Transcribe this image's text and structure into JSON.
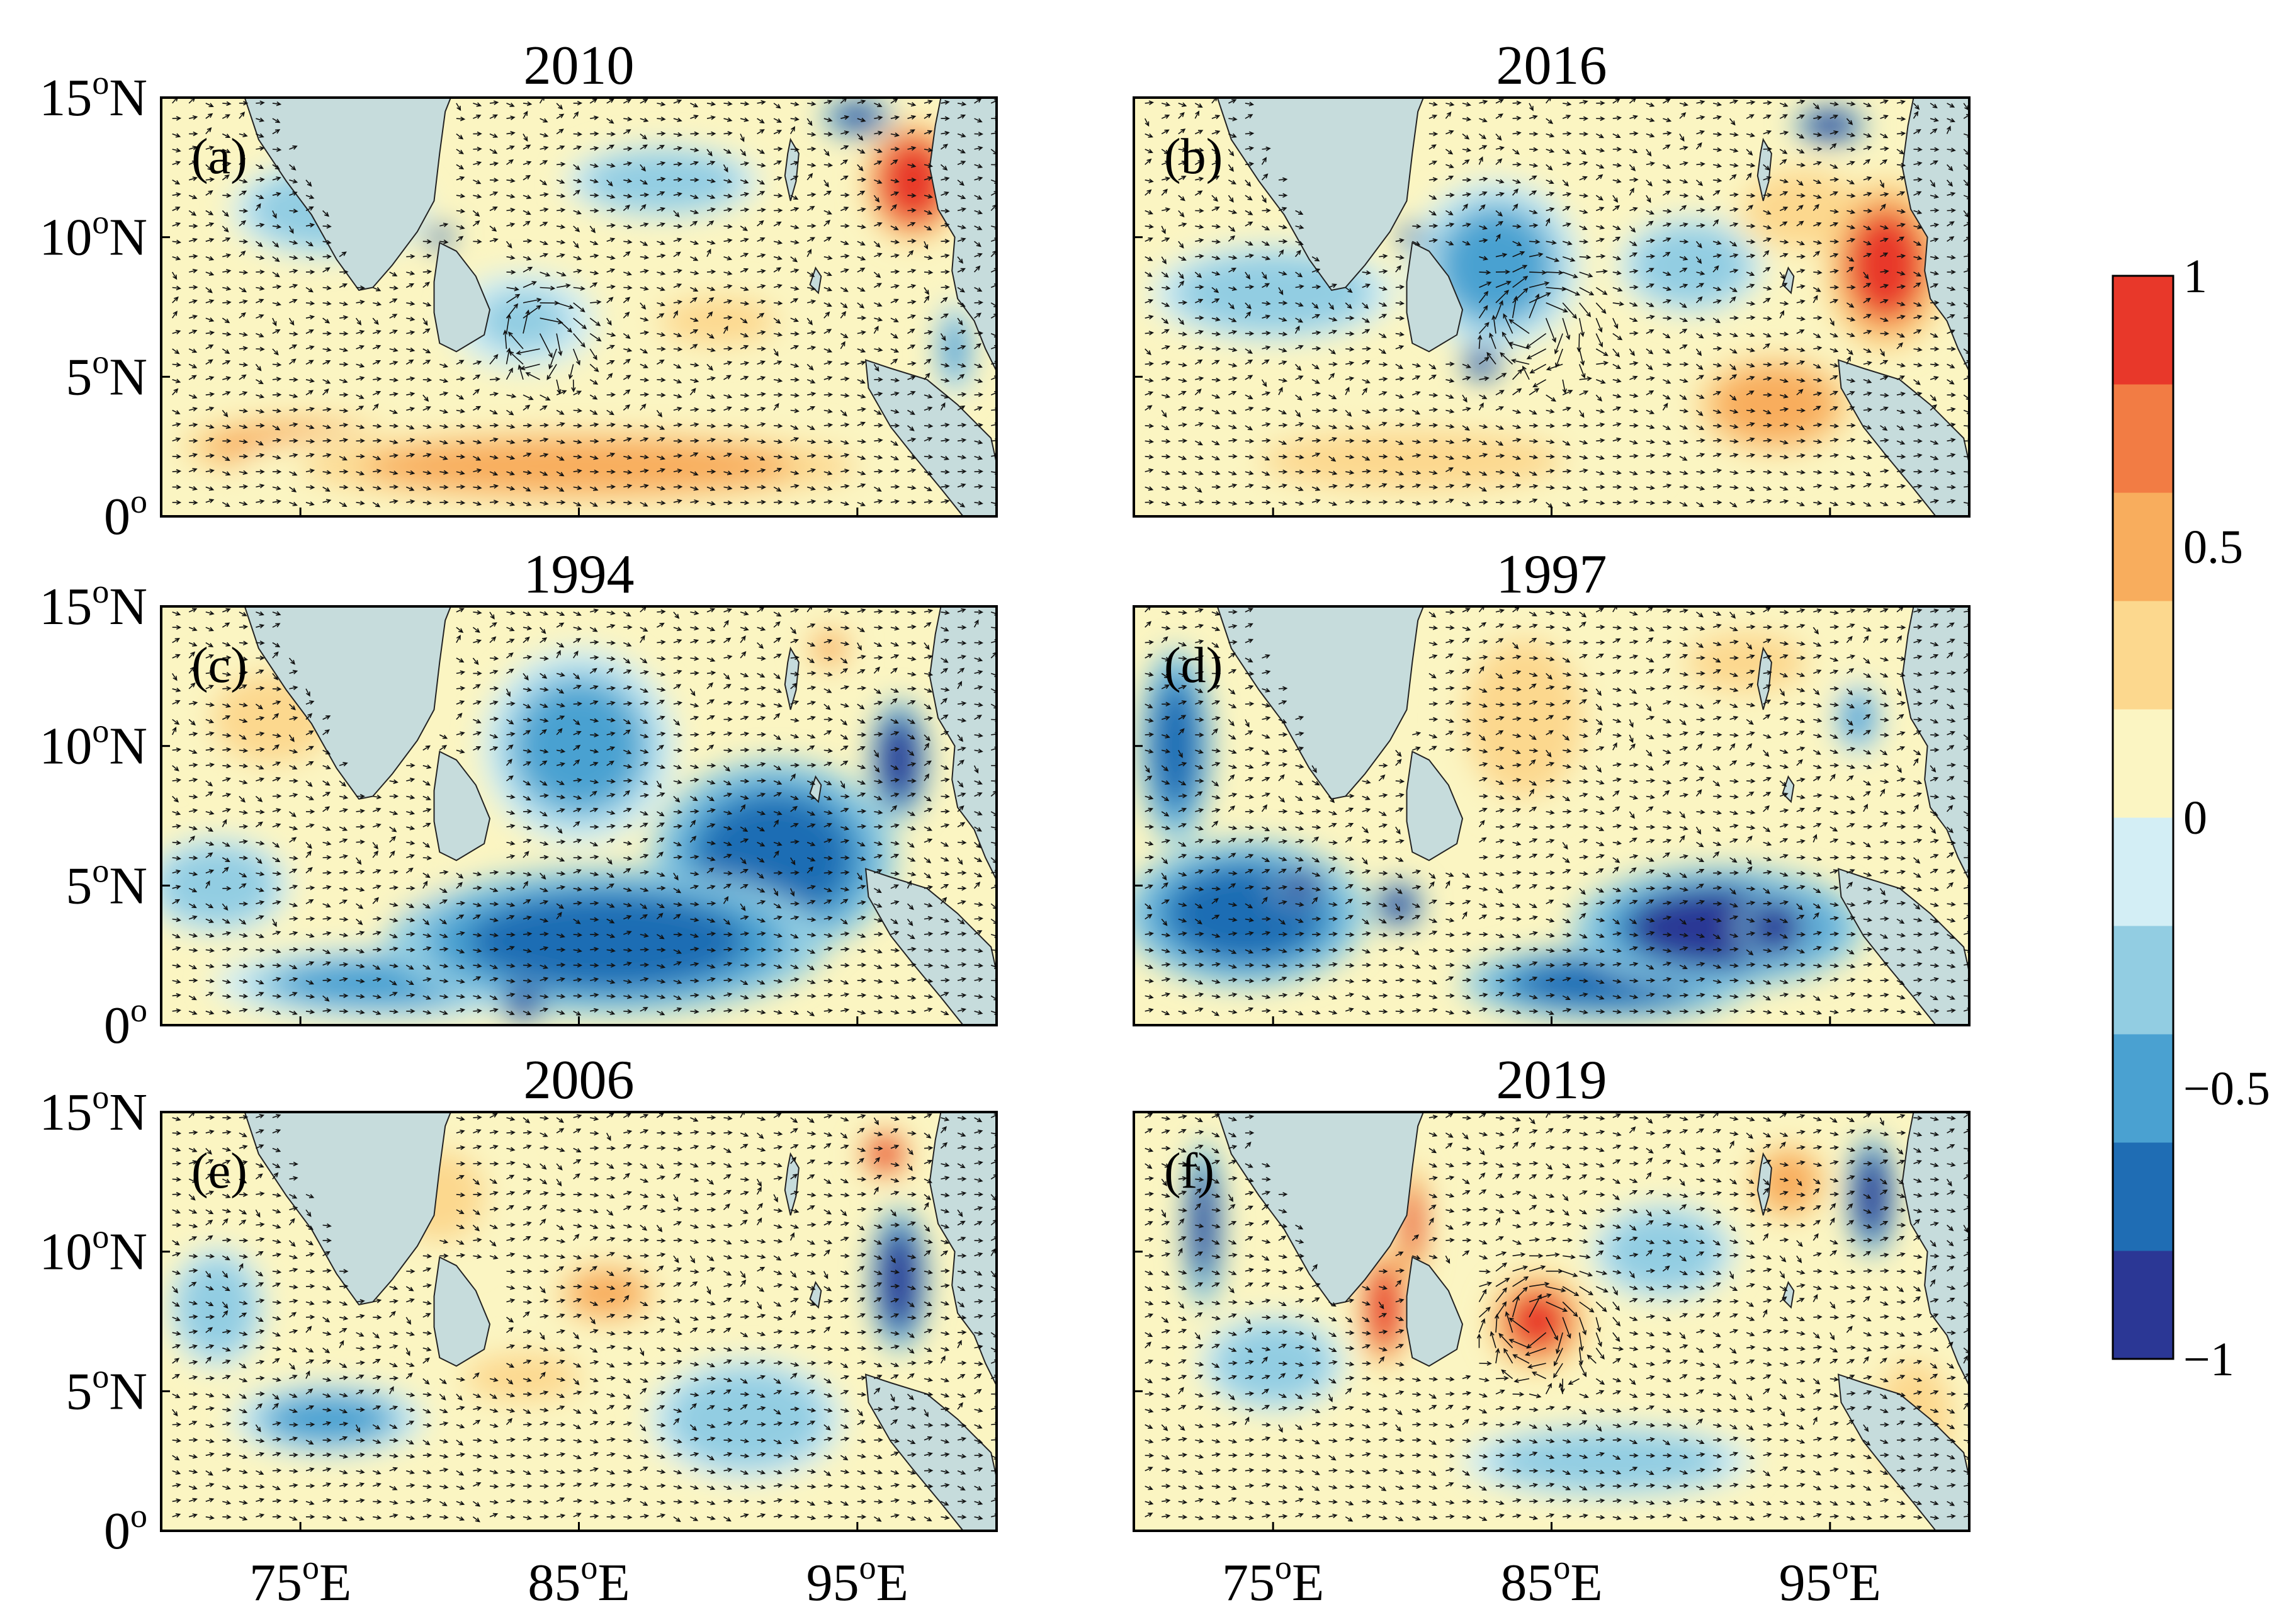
{
  "chart_data": {
    "type": "heatmap",
    "description_units": "anomaly (normalized), with current vectors",
    "x_ticks": [
      {
        "value": 75,
        "label": "75",
        "sup": "o",
        "suffix": "E"
      },
      {
        "value": 85,
        "label": "85",
        "sup": "o",
        "suffix": "E"
      },
      {
        "value": 95,
        "label": "95",
        "sup": "o",
        "suffix": "E"
      }
    ],
    "y_ticks": [
      {
        "value": 15,
        "label": "15",
        "sup": "o",
        "suffix": "N"
      },
      {
        "value": 10,
        "label": "10",
        "sup": "o",
        "suffix": "N"
      },
      {
        "value": 5,
        "label": "5",
        "sup": "o",
        "suffix": "N"
      },
      {
        "value": 0,
        "label": "0",
        "sup": "o",
        "suffix": ""
      }
    ],
    "xlim": [
      70,
      100
    ],
    "ylim": [
      0,
      15
    ],
    "panels": [
      {
        "id": "a",
        "label": "(a)",
        "title": "2010",
        "blobs": [
          {
            "x": 85,
            "y": 1.8,
            "v": 0.55,
            "rx": 14,
            "ry": 1.8
          },
          {
            "x": 75,
            "y": 2.5,
            "v": 0.45,
            "rx": 6,
            "ry": 1.5
          },
          {
            "x": 97,
            "y": 12,
            "v": 0.95,
            "rx": 2,
            "ry": 2.5
          },
          {
            "x": 90,
            "y": 7,
            "v": 0.4,
            "rx": 3,
            "ry": 1.2
          },
          {
            "x": 76,
            "y": 11,
            "v": -0.3,
            "rx": 4,
            "ry": 2
          },
          {
            "x": 88,
            "y": 12,
            "v": -0.35,
            "rx": 4,
            "ry": 1.5
          },
          {
            "x": 95,
            "y": 14.3,
            "v": -0.8,
            "rx": 1.5,
            "ry": 0.8
          },
          {
            "x": 83,
            "y": 7,
            "v": -0.2,
            "rx": 3,
            "ry": 2
          },
          {
            "x": 80,
            "y": 10,
            "v": -0.9,
            "rx": 0.6,
            "ry": 0.5
          },
          {
            "x": 98.5,
            "y": 6,
            "v": -0.5,
            "rx": 0.8,
            "ry": 2
          }
        ],
        "eddy": {
          "x": 83.5,
          "y": 6.5,
          "r": 1.6
        }
      },
      {
        "id": "b",
        "label": "(b)",
        "title": "2016",
        "blobs": [
          {
            "x": 97,
            "y": 9,
            "v": 0.85,
            "rx": 2.5,
            "ry": 3.5
          },
          {
            "x": 93,
            "y": 4,
            "v": 0.45,
            "rx": 4,
            "ry": 2.5
          },
          {
            "x": 94,
            "y": 11,
            "v": 0.4,
            "rx": 3,
            "ry": 2
          },
          {
            "x": 83,
            "y": 9,
            "v": -0.4,
            "rx": 3.5,
            "ry": 3.5
          },
          {
            "x": 90,
            "y": 9,
            "v": -0.35,
            "rx": 3,
            "ry": 2
          },
          {
            "x": 75,
            "y": 8,
            "v": -0.3,
            "rx": 5,
            "ry": 2
          },
          {
            "x": 95,
            "y": 14,
            "v": -0.9,
            "rx": 1.5,
            "ry": 0.8
          },
          {
            "x": 82.5,
            "y": 5.5,
            "v": -0.9,
            "rx": 0.8,
            "ry": 0.8
          },
          {
            "x": 80,
            "y": 10,
            "v": -0.9,
            "rx": 0.6,
            "ry": 0.5
          },
          {
            "x": 80,
            "y": 2,
            "v": 0.25,
            "rx": 10,
            "ry": 2
          }
        ],
        "eddy": {
          "x": 84.5,
          "y": 7,
          "r": 2.0
        }
      },
      {
        "id": "c",
        "label": "(c)",
        "title": "1994",
        "blobs": [
          {
            "x": 86,
            "y": 3,
            "v": -0.75,
            "rx": 9,
            "ry": 3
          },
          {
            "x": 92,
            "y": 6,
            "v": -0.6,
            "rx": 5,
            "ry": 4
          },
          {
            "x": 96.5,
            "y": 9.5,
            "v": -0.95,
            "rx": 1.2,
            "ry": 2.5
          },
          {
            "x": 85,
            "y": 10,
            "v": -0.5,
            "rx": 4,
            "ry": 4
          },
          {
            "x": 78,
            "y": 1.5,
            "v": -0.55,
            "rx": 7,
            "ry": 1.5
          },
          {
            "x": 83,
            "y": 0.8,
            "v": -0.95,
            "rx": 1,
            "ry": 0.8
          },
          {
            "x": 74,
            "y": 11,
            "v": 0.25,
            "rx": 4,
            "ry": 3
          },
          {
            "x": 78,
            "y": 6,
            "v": 0.2,
            "rx": 3,
            "ry": 2
          },
          {
            "x": 94,
            "y": 13.5,
            "v": 0.5,
            "rx": 1,
            "ry": 1
          },
          {
            "x": 72,
            "y": 5,
            "v": -0.3,
            "rx": 3,
            "ry": 2
          }
        ],
        "eddy": null
      },
      {
        "id": "d",
        "label": "(d)",
        "title": "1997",
        "blobs": [
          {
            "x": 74,
            "y": 4,
            "v": -0.7,
            "rx": 5,
            "ry": 3
          },
          {
            "x": 71.5,
            "y": 10,
            "v": -0.6,
            "rx": 1.5,
            "ry": 4
          },
          {
            "x": 76,
            "y": 5,
            "v": -0.95,
            "rx": 1.2,
            "ry": 0.8
          },
          {
            "x": 79.5,
            "y": 4.3,
            "v": -0.95,
            "rx": 1,
            "ry": 1
          },
          {
            "x": 91,
            "y": 3.5,
            "v": -0.85,
            "rx": 6,
            "ry": 2.5
          },
          {
            "x": 93,
            "y": 3.5,
            "v": -0.95,
            "rx": 1.5,
            "ry": 1.5
          },
          {
            "x": 87,
            "y": 1.5,
            "v": -0.7,
            "rx": 6,
            "ry": 1.5
          },
          {
            "x": 84,
            "y": 11,
            "v": 0.3,
            "rx": 3,
            "ry": 4
          },
          {
            "x": 92,
            "y": 13,
            "v": 0.25,
            "rx": 4,
            "ry": 2
          },
          {
            "x": 96,
            "y": 11,
            "v": -0.4,
            "rx": 1,
            "ry": 1.5
          }
        ],
        "eddy": null
      },
      {
        "id": "e",
        "label": "(e)",
        "title": "2006",
        "blobs": [
          {
            "x": 86,
            "y": 8.5,
            "v": 0.55,
            "rx": 2.5,
            "ry": 1.5
          },
          {
            "x": 96.5,
            "y": 9,
            "v": -0.95,
            "rx": 1.2,
            "ry": 3
          },
          {
            "x": 96,
            "y": 13.5,
            "v": 0.9,
            "rx": 1,
            "ry": 1
          },
          {
            "x": 76,
            "y": 4,
            "v": -0.45,
            "rx": 4,
            "ry": 1.5
          },
          {
            "x": 72,
            "y": 8,
            "v": -0.35,
            "rx": 2,
            "ry": 2.5
          },
          {
            "x": 91,
            "y": 4,
            "v": -0.3,
            "rx": 4,
            "ry": 2.5
          },
          {
            "x": 89,
            "y": 1.5,
            "v": 0.2,
            "rx": 6,
            "ry": 1.5
          },
          {
            "x": 80,
            "y": 12,
            "v": 0.25,
            "rx": 3,
            "ry": 3
          },
          {
            "x": 83,
            "y": 5.5,
            "v": 0.3,
            "rx": 3,
            "ry": 1.2
          }
        ],
        "eddy": null
      },
      {
        "id": "f",
        "label": "(f)",
        "title": "2019",
        "blobs": [
          {
            "x": 84.5,
            "y": 7.5,
            "v": 0.85,
            "rx": 2,
            "ry": 2
          },
          {
            "x": 79,
            "y": 8,
            "v": 0.9,
            "rx": 1,
            "ry": 2.5
          },
          {
            "x": 80,
            "y": 11,
            "v": 0.85,
            "rx": 0.6,
            "ry": 2.5
          },
          {
            "x": 72.5,
            "y": 11,
            "v": -0.8,
            "rx": 0.8,
            "ry": 3.5
          },
          {
            "x": 96.5,
            "y": 12,
            "v": -0.95,
            "rx": 1,
            "ry": 2.5
          },
          {
            "x": 93.5,
            "y": 12.5,
            "v": 0.6,
            "rx": 1.5,
            "ry": 1.5
          },
          {
            "x": 89,
            "y": 10,
            "v": -0.3,
            "rx": 3,
            "ry": 2
          },
          {
            "x": 75,
            "y": 6,
            "v": -0.3,
            "rx": 3,
            "ry": 2
          },
          {
            "x": 87,
            "y": 2.5,
            "v": -0.3,
            "rx": 6,
            "ry": 1.5
          },
          {
            "x": 98,
            "y": 4,
            "v": 0.3,
            "rx": 2,
            "ry": 3
          }
        ],
        "eddy": {
          "x": 84.5,
          "y": 7.5,
          "r": 2.0
        }
      }
    ],
    "colorbar": {
      "min": -1,
      "max": 1,
      "tick_values": [
        1,
        0.5,
        0,
        -0.5,
        -1
      ],
      "tick_labels": [
        "1",
        "0.5",
        "0",
        "−0.5",
        "−1"
      ],
      "levels": [
        -1,
        -0.8,
        -0.6,
        -0.4,
        -0.2,
        0,
        0.2,
        0.4,
        0.6,
        0.8,
        1
      ],
      "colors": [
        "#2b3795",
        "#1f6db4",
        "#4aa1d1",
        "#92cde2",
        "#d3eef5",
        "#fbf5c2",
        "#fcd88e",
        "#f8ad5d",
        "#f27c44",
        "#e8382a"
      ]
    },
    "land_color": "#c6dcdc",
    "vector_color": "#111111"
  }
}
